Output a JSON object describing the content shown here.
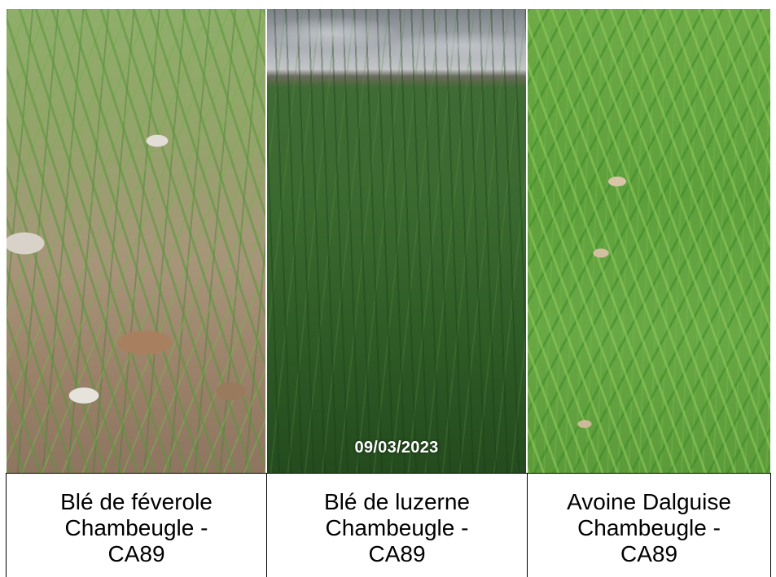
{
  "date": "09/03/2023",
  "panels": [
    {
      "photo": "wheat-faba-bean-field-closeup",
      "line1": "Blé de féverole",
      "line2": "Chambeugle -",
      "line3": "CA89"
    },
    {
      "photo": "wheat-alfalfa-field-wide",
      "line1": "Blé de luzerne",
      "line2": "Chambeugle -",
      "line3": "CA89"
    },
    {
      "photo": "oat-dalguise-field-closeup",
      "line1": "Avoine Dalguise",
      "line2": "Chambeugle -",
      "line3": "CA89"
    }
  ]
}
